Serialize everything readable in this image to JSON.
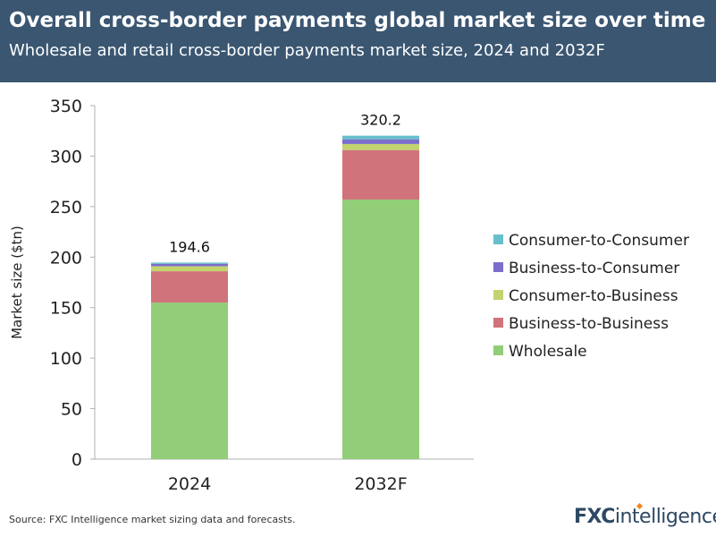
{
  "header": {
    "title": "Overall cross-border payments global market size over time",
    "subtitle": "Wholesale and retail cross-border payments market size, 2024 and 2032F"
  },
  "footer": {
    "source": "Source: FXC Intelligence market sizing data and forecasts.",
    "logo_bold": "FXC",
    "logo_light": "intelligence"
  },
  "colors": {
    "header_bg": "#3a5671",
    "wholesale": "#92cd78",
    "b2b": "#d0737a",
    "c2b": "#c2d36f",
    "b2c": "#7b6dcc",
    "c2c": "#67bfcb"
  },
  "chart_data": {
    "type": "bar",
    "stacked": true,
    "categories": [
      "2024",
      "2032F"
    ],
    "series": [
      {
        "name": "Wholesale",
        "values": [
          155,
          257
        ],
        "color": "#92cd78"
      },
      {
        "name": "Business-to-Business",
        "values": [
          31,
          49
        ],
        "color": "#d0737a"
      },
      {
        "name": "Consumer-to-Business",
        "values": [
          5,
          6
        ],
        "color": "#c2d36f"
      },
      {
        "name": "Business-to-Consumer",
        "values": [
          2.4,
          4.6
        ],
        "color": "#7b6dcc"
      },
      {
        "name": "Consumer-to-Consumer",
        "values": [
          1.2,
          3.6
        ],
        "color": "#67bfcb"
      }
    ],
    "totals": [
      194.6,
      320.2
    ],
    "total_labels": [
      "194.6",
      "320.2"
    ],
    "yticks": [
      0,
      50,
      100,
      150,
      200,
      250,
      300,
      350
    ],
    "ylim": [
      0,
      350
    ],
    "ylabel": "Market size ($tn)",
    "xlabel": "",
    "legend_position": "right",
    "legend_order": [
      "Consumer-to-Consumer",
      "Business-to-Consumer",
      "Consumer-to-Business",
      "Business-to-Business",
      "Wholesale"
    ],
    "grid": false
  }
}
